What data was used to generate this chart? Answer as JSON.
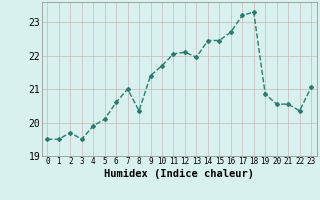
{
  "xlabel": "Humidex (Indice chaleur)",
  "x": [
    0,
    1,
    2,
    3,
    4,
    5,
    6,
    7,
    8,
    9,
    10,
    11,
    12,
    13,
    14,
    15,
    16,
    17,
    18,
    19,
    20,
    21,
    22,
    23
  ],
  "y": [
    19.5,
    19.5,
    19.7,
    19.5,
    19.9,
    20.1,
    20.6,
    21.0,
    20.35,
    21.4,
    21.7,
    22.05,
    22.1,
    21.95,
    22.45,
    22.45,
    22.7,
    23.2,
    23.3,
    20.85,
    20.55,
    20.55,
    20.35,
    21.05
  ],
  "ylim": [
    19.0,
    23.6
  ],
  "yticks": [
    19,
    20,
    21,
    22,
    23
  ],
  "xticks": [
    0,
    1,
    2,
    3,
    4,
    5,
    6,
    7,
    8,
    9,
    10,
    11,
    12,
    13,
    14,
    15,
    16,
    17,
    18,
    19,
    20,
    21,
    22,
    23
  ],
  "line_color": "#2d7a6e",
  "marker": "D",
  "marker_size": 2.0,
  "line_width": 1.0,
  "bg_color": "#d8f0ee",
  "grid_color": "#c8b8b8",
  "tick_label_fontsize": 5.5,
  "xlabel_fontsize": 7.5,
  "ytick_fontsize": 7.0
}
